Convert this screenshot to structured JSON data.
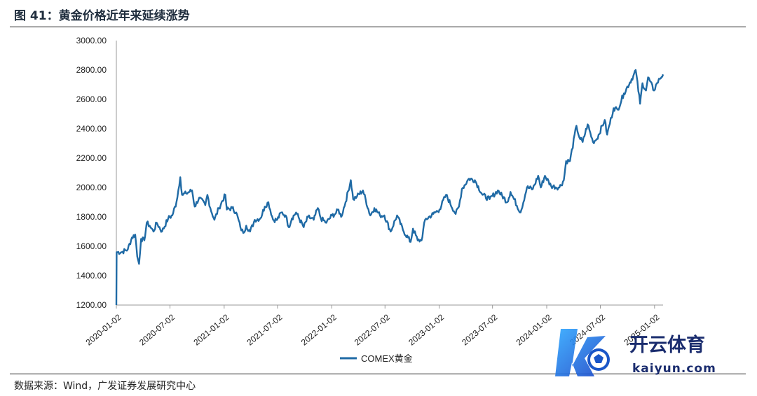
{
  "figure": {
    "title": "图 41：黄金价格近年来延续涨势",
    "source": "数据来源：Wind，广发证券发展研究中心"
  },
  "chart_data": {
    "type": "line",
    "title": "图 41：黄金价格近年来延续涨势",
    "xlabel": "",
    "ylabel": "",
    "ylim": [
      1200,
      3000
    ],
    "xlim": [
      "2020-01-02",
      "2025-01-31"
    ],
    "grid": false,
    "legend_position": "bottom-center",
    "yticks": [
      "1200.00",
      "1400.00",
      "1600.00",
      "1800.00",
      "2000.00",
      "2200.00",
      "2400.00",
      "2600.00",
      "2800.00",
      "3000.00"
    ],
    "xticks": [
      "2020-01-02",
      "2020-07-02",
      "2021-01-02",
      "2021-07-02",
      "2022-01-02",
      "2022-07-02",
      "2023-01-02",
      "2023-07-02",
      "2024-01-02",
      "2024-07-02",
      "2025-01-02"
    ],
    "series": [
      {
        "name": "COMEX黄金",
        "color": "#1f6aa5",
        "points": [
          [
            "2020-01-02",
            1200
          ],
          [
            "2020-01-03",
            1560
          ],
          [
            "2020-01-20",
            1560
          ],
          [
            "2020-02-10",
            1580
          ],
          [
            "2020-02-24",
            1660
          ],
          [
            "2020-03-06",
            1680
          ],
          [
            "2020-03-13",
            1530
          ],
          [
            "2020-03-19",
            1480
          ],
          [
            "2020-03-26",
            1650
          ],
          [
            "2020-04-06",
            1640
          ],
          [
            "2020-04-14",
            1760
          ],
          [
            "2020-04-24",
            1740
          ],
          [
            "2020-05-07",
            1700
          ],
          [
            "2020-05-18",
            1760
          ],
          [
            "2020-06-05",
            1700
          ],
          [
            "2020-06-26",
            1790
          ],
          [
            "2020-07-10",
            1810
          ],
          [
            "2020-07-24",
            1900
          ],
          [
            "2020-08-06",
            2070
          ],
          [
            "2020-08-12",
            1950
          ],
          [
            "2020-08-26",
            1960
          ],
          [
            "2020-09-15",
            1980
          ],
          [
            "2020-09-24",
            1870
          ],
          [
            "2020-10-09",
            1930
          ],
          [
            "2020-10-30",
            1880
          ],
          [
            "2020-11-06",
            1950
          ],
          [
            "2020-11-16",
            1860
          ],
          [
            "2020-11-30",
            1780
          ],
          [
            "2020-12-15",
            1860
          ],
          [
            "2021-01-06",
            1950
          ],
          [
            "2021-01-11",
            1850
          ],
          [
            "2021-01-29",
            1860
          ],
          [
            "2021-02-12",
            1830
          ],
          [
            "2021-02-26",
            1730
          ],
          [
            "2021-03-08",
            1690
          ],
          [
            "2021-03-18",
            1740
          ],
          [
            "2021-03-31",
            1700
          ],
          [
            "2021-04-16",
            1780
          ],
          [
            "2021-05-05",
            1790
          ],
          [
            "2021-05-20",
            1870
          ],
          [
            "2021-06-01",
            1900
          ],
          [
            "2021-06-17",
            1780
          ],
          [
            "2021-07-01",
            1780
          ],
          [
            "2021-07-15",
            1830
          ],
          [
            "2021-07-30",
            1810
          ],
          [
            "2021-08-09",
            1730
          ],
          [
            "2021-08-20",
            1790
          ],
          [
            "2021-09-03",
            1830
          ],
          [
            "2021-09-29",
            1730
          ],
          [
            "2021-10-14",
            1800
          ],
          [
            "2021-11-02",
            1780
          ],
          [
            "2021-11-16",
            1860
          ],
          [
            "2021-11-26",
            1790
          ],
          [
            "2021-12-15",
            1760
          ],
          [
            "2022-01-03",
            1810
          ],
          [
            "2022-01-14",
            1820
          ],
          [
            "2022-01-25",
            1850
          ],
          [
            "2022-02-03",
            1800
          ],
          [
            "2022-02-18",
            1900
          ],
          [
            "2022-03-08",
            2050
          ],
          [
            "2022-03-16",
            1920
          ],
          [
            "2022-03-29",
            1940
          ],
          [
            "2022-04-18",
            1980
          ],
          [
            "2022-05-13",
            1810
          ],
          [
            "2022-05-27",
            1860
          ],
          [
            "2022-06-15",
            1810
          ],
          [
            "2022-06-30",
            1810
          ],
          [
            "2022-07-21",
            1700
          ],
          [
            "2022-08-12",
            1810
          ],
          [
            "2022-09-01",
            1710
          ],
          [
            "2022-09-27",
            1630
          ],
          [
            "2022-10-05",
            1720
          ],
          [
            "2022-10-21",
            1640
          ],
          [
            "2022-11-03",
            1640
          ],
          [
            "2022-11-15",
            1780
          ],
          [
            "2022-12-13",
            1820
          ],
          [
            "2023-01-03",
            1850
          ],
          [
            "2023-01-25",
            1950
          ],
          [
            "2023-02-27",
            1820
          ],
          [
            "2023-03-10",
            1870
          ],
          [
            "2023-03-20",
            1990
          ],
          [
            "2023-04-13",
            2060
          ],
          [
            "2023-05-03",
            2050
          ],
          [
            "2023-05-29",
            1950
          ],
          [
            "2023-06-22",
            1920
          ],
          [
            "2023-07-20",
            1980
          ],
          [
            "2023-08-21",
            1900
          ],
          [
            "2023-09-01",
            1970
          ],
          [
            "2023-10-05",
            1830
          ],
          [
            "2023-10-27",
            2000
          ],
          [
            "2023-11-16",
            1990
          ],
          [
            "2023-12-04",
            2080
          ],
          [
            "2023-12-13",
            2000
          ],
          [
            "2023-12-27",
            2080
          ],
          [
            "2024-01-17",
            2010
          ],
          [
            "2024-02-14",
            2000
          ],
          [
            "2024-02-29",
            2050
          ],
          [
            "2024-03-08",
            2180
          ],
          [
            "2024-03-21",
            2180
          ],
          [
            "2024-04-12",
            2420
          ],
          [
            "2024-04-22",
            2340
          ],
          [
            "2024-05-03",
            2310
          ],
          [
            "2024-05-20",
            2430
          ],
          [
            "2024-06-07",
            2310
          ],
          [
            "2024-06-20",
            2330
          ],
          [
            "2024-07-17",
            2460
          ],
          [
            "2024-07-25",
            2360
          ],
          [
            "2024-08-16",
            2540
          ],
          [
            "2024-08-30",
            2530
          ],
          [
            "2024-09-20",
            2640
          ],
          [
            "2024-10-22",
            2760
          ],
          [
            "2024-10-30",
            2800
          ],
          [
            "2024-11-14",
            2570
          ],
          [
            "2024-11-22",
            2710
          ],
          [
            "2024-12-04",
            2660
          ],
          [
            "2024-12-11",
            2750
          ],
          [
            "2024-12-31",
            2660
          ],
          [
            "2025-01-10",
            2710
          ],
          [
            "2025-01-20",
            2740
          ],
          [
            "2025-01-31",
            2770
          ]
        ]
      }
    ]
  }
}
